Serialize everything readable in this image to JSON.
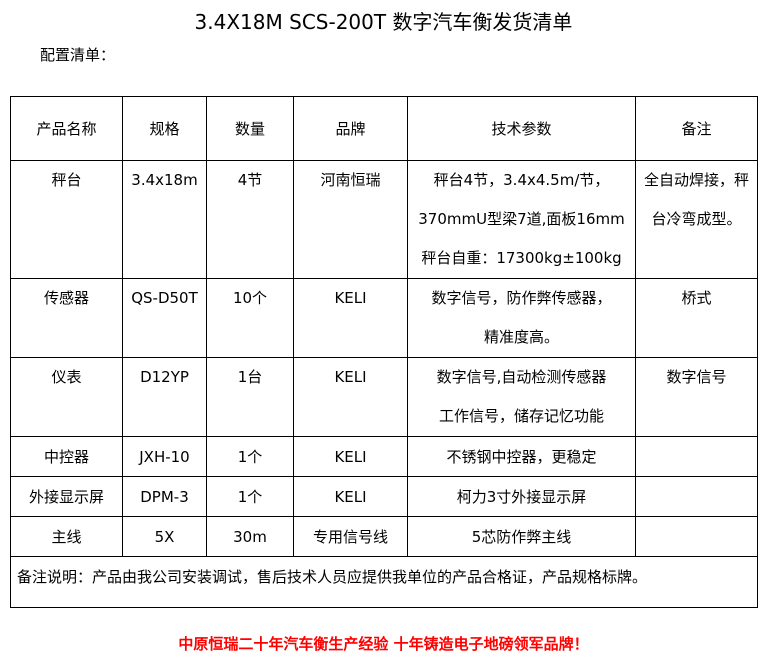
{
  "title": "3.4X18M SCS-200T 数字汽车衡发货清单",
  "subtitle": "配置清单：",
  "headers": [
    "产品名称",
    "规格",
    "数量",
    "品牌",
    "技术参数",
    "备注"
  ],
  "rows": [
    {
      "name": "秤台",
      "spec": "3.4x18m",
      "qty": "4节",
      "brand": "河南恒瑞",
      "tech": [
        "秤台4节，3.4x4.5m/节，",
        "370mmU型梁7道,面板16mm",
        "秤台自重：17300kg±100kg"
      ],
      "remark": [
        "全自动焊接，秤",
        "台冷弯成型。"
      ]
    },
    {
      "name": "传感器",
      "spec": "QS-D50T",
      "qty": "10个",
      "brand": "KELI",
      "tech": [
        "数字信号，防作弊传感器，",
        "精准度高。"
      ],
      "remark": [
        "桥式"
      ]
    },
    {
      "name": "仪表",
      "spec": "D12YP",
      "qty": "1台",
      "brand": "KELI",
      "tech": [
        "数字信号,自动检测传感器",
        "工作信号，储存记忆功能"
      ],
      "remark": [
        "数字信号"
      ]
    },
    {
      "name": "中控器",
      "spec": "JXH-10",
      "qty": "1个",
      "brand": "KELI",
      "tech": [
        "不锈钢中控器，更稳定"
      ],
      "remark": [
        ""
      ]
    },
    {
      "name": "外接显示屏",
      "spec": "DPM-3",
      "qty": "1个",
      "brand": "KELI",
      "tech": [
        "柯力3寸外接显示屏"
      ],
      "remark": [
        ""
      ]
    },
    {
      "name": "主线",
      "spec": "5X",
      "qty": "30m",
      "brand": "专用信号线",
      "tech": [
        "5芯防作弊主线"
      ],
      "remark": [
        ""
      ]
    }
  ],
  "note": "备注说明：产品由我公司安装调试，售后技术人员应提供我单位的产品合格证，产品规格标牌。",
  "slogan": "中原恒瑞二十年汽车衡生产经验 十年铸造电子地磅领军品牌！"
}
